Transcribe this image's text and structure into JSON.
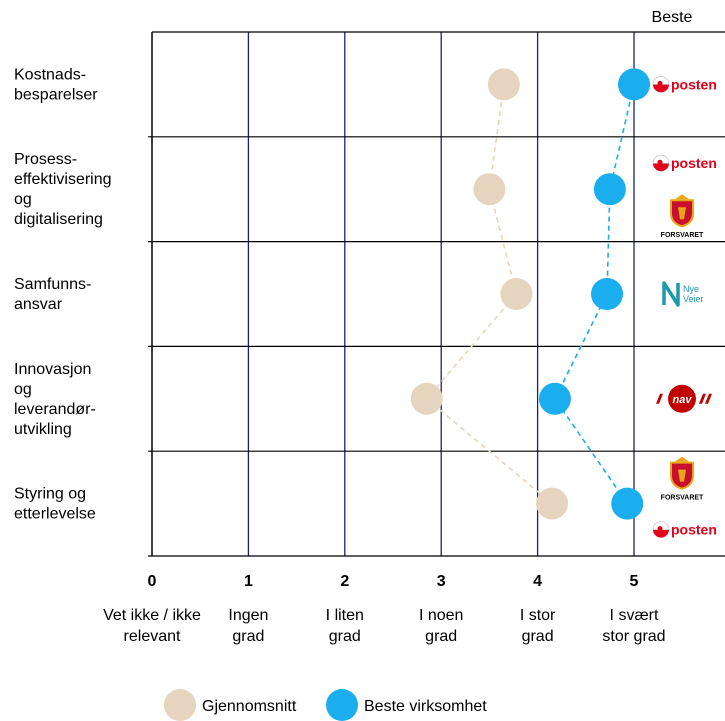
{
  "chart_data": {
    "type": "scatter",
    "header": "Beste",
    "x_ticks": [
      0,
      1,
      2,
      3,
      4,
      5
    ],
    "x_tick_labels": [
      "Vet ikke / ikke\nrelevant",
      "Ingen\ngrad",
      "I liten\ngrad",
      "I noen\ngrad",
      "I stor\ngrad",
      "I svært\nstor grad"
    ],
    "xlim": [
      0,
      5.8
    ],
    "categories": [
      "Kostnads-\nbesparelser",
      "Prosess-\neffektivisering\nog\ndigitalisering",
      "Samfunns-\nansvar",
      "Innovasjon\nog\nleverandør-\nutvikling",
      "Styring og\netterlevelse"
    ],
    "series": [
      {
        "name": "Gjennomsnitt",
        "color": "#E6D5BE",
        "values": [
          3.65,
          3.5,
          3.78,
          2.85,
          4.15
        ]
      },
      {
        "name": "Beste virksomhet",
        "color": "#1AAEEF",
        "values": [
          5.0,
          4.75,
          4.72,
          4.18,
          4.93
        ]
      }
    ],
    "best_logos": [
      [
        {
          "type": "posten",
          "text": "posten"
        }
      ],
      [
        {
          "type": "posten",
          "text": "posten"
        },
        {
          "type": "forsvaret",
          "text": "FORSVARET"
        }
      ],
      [
        {
          "type": "nyeveier",
          "text": "Nye\nVeier"
        }
      ],
      [
        {
          "type": "nav",
          "text": "nav"
        }
      ],
      [
        {
          "type": "forsvaret",
          "text": "FORSVARET"
        },
        {
          "type": "posten",
          "text": "posten"
        }
      ]
    ],
    "grid_color": "#1F1F7A",
    "legend_position": "bottom"
  }
}
